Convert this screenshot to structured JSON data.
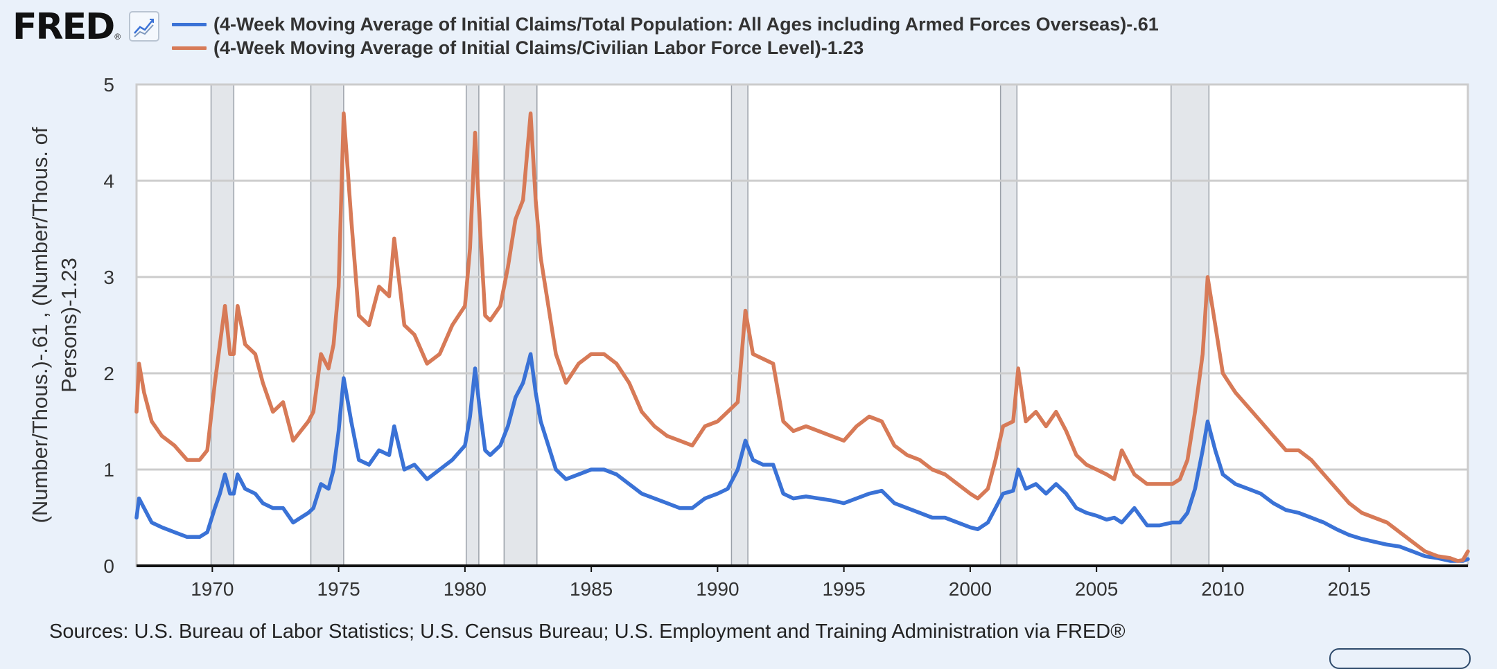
{
  "logo": {
    "text": "FRED",
    "reg": "®"
  },
  "icons": {
    "graph": "line-graph-icon"
  },
  "legend": {
    "series0": "(4-Week Moving Average of Initial Claims/Total Population: All Ages including Armed Forces Overseas)-.61",
    "series1": "(4-Week Moving Average of Initial Claims/Civilian Labor Force Level)-1.23"
  },
  "source": "Sources: U.S. Bureau of Labor Statistics; U.S. Census Bureau; U.S. Employment and Training Administration via FRED®",
  "colors": {
    "series0": "#3a72d6",
    "series1": "#d77a57",
    "recession": "#e3e6ea",
    "grid": "#cccccc",
    "axis": "#111111"
  },
  "chart_data": {
    "type": "line",
    "ylabel": "(Number/Thous.)-.61 , (Number/Thous. of Persons)-1.23",
    "xlim": [
      1967.0,
      2019.7
    ],
    "ylim": [
      0,
      5
    ],
    "x_ticks": [
      1970,
      1975,
      1980,
      1985,
      1990,
      1995,
      2000,
      2005,
      2010,
      2015
    ],
    "y_ticks": [
      0,
      1,
      2,
      3,
      4,
      5
    ],
    "grid": true,
    "legend_position": "top",
    "recessions": [
      [
        1969.95,
        1970.85
      ],
      [
        1973.9,
        1975.2
      ],
      [
        1980.05,
        1980.55
      ],
      [
        1981.55,
        1982.85
      ],
      [
        1990.55,
        1991.2
      ],
      [
        2001.2,
        2001.85
      ],
      [
        2007.95,
        2009.45
      ]
    ],
    "series": [
      {
        "name": "(4-Week Moving Average of Initial Claims/Total Population: All Ages including Armed Forces Overseas)-.61",
        "x": [
          1967.0,
          1967.1,
          1967.3,
          1967.6,
          1968.0,
          1968.5,
          1969.0,
          1969.5,
          1969.8,
          1970.1,
          1970.3,
          1970.5,
          1970.7,
          1970.85,
          1971.0,
          1971.3,
          1971.7,
          1972.0,
          1972.4,
          1972.8,
          1973.2,
          1973.5,
          1973.8,
          1974.0,
          1974.3,
          1974.6,
          1974.8,
          1975.0,
          1975.2,
          1975.5,
          1975.8,
          1976.2,
          1976.6,
          1977.0,
          1977.2,
          1977.6,
          1978.0,
          1978.5,
          1979.0,
          1979.5,
          1980.0,
          1980.2,
          1980.4,
          1980.6,
          1980.8,
          1981.0,
          1981.4,
          1981.7,
          1982.0,
          1982.3,
          1982.6,
          1982.8,
          1983.0,
          1983.3,
          1983.6,
          1984.0,
          1984.5,
          1985.0,
          1985.5,
          1986.0,
          1986.5,
          1987.0,
          1987.5,
          1988.0,
          1988.5,
          1989.0,
          1989.5,
          1990.0,
          1990.4,
          1990.8,
          1991.1,
          1991.4,
          1991.8,
          1992.2,
          1992.6,
          1993.0,
          1993.5,
          1994.0,
          1994.5,
          1995.0,
          1995.5,
          1996.0,
          1996.5,
          1997.0,
          1997.5,
          1998.0,
          1998.5,
          1999.0,
          1999.5,
          2000.0,
          2000.3,
          2000.7,
          2001.0,
          2001.3,
          2001.7,
          2001.9,
          2002.2,
          2002.6,
          2003.0,
          2003.4,
          2003.8,
          2004.2,
          2004.6,
          2005.0,
          2005.4,
          2005.7,
          2006.0,
          2006.5,
          2007.0,
          2007.5,
          2008.0,
          2008.3,
          2008.6,
          2008.9,
          2009.2,
          2009.4,
          2009.7,
          2010.0,
          2010.5,
          2011.0,
          2011.5,
          2012.0,
          2012.5,
          2013.0,
          2013.5,
          2014.0,
          2014.5,
          2015.0,
          2015.5,
          2016.0,
          2016.5,
          2017.0,
          2017.5,
          2018.0,
          2018.5,
          2019.0,
          2019.3,
          2019.5,
          2019.7
        ],
        "y": [
          0.5,
          0.7,
          0.6,
          0.45,
          0.4,
          0.35,
          0.3,
          0.3,
          0.35,
          0.6,
          0.75,
          0.95,
          0.75,
          0.75,
          0.95,
          0.8,
          0.75,
          0.65,
          0.6,
          0.6,
          0.45,
          0.5,
          0.55,
          0.6,
          0.85,
          0.8,
          1.0,
          1.4,
          1.95,
          1.5,
          1.1,
          1.05,
          1.2,
          1.15,
          1.45,
          1.0,
          1.05,
          0.9,
          1.0,
          1.1,
          1.25,
          1.55,
          2.05,
          1.6,
          1.2,
          1.15,
          1.25,
          1.45,
          1.75,
          1.9,
          2.2,
          1.8,
          1.5,
          1.25,
          1.0,
          0.9,
          0.95,
          1.0,
          1.0,
          0.95,
          0.85,
          0.75,
          0.7,
          0.65,
          0.6,
          0.6,
          0.7,
          0.75,
          0.8,
          1.0,
          1.3,
          1.1,
          1.05,
          1.05,
          0.75,
          0.7,
          0.72,
          0.7,
          0.68,
          0.65,
          0.7,
          0.75,
          0.78,
          0.65,
          0.6,
          0.55,
          0.5,
          0.5,
          0.45,
          0.4,
          0.38,
          0.45,
          0.6,
          0.75,
          0.78,
          1.0,
          0.8,
          0.85,
          0.75,
          0.85,
          0.75,
          0.6,
          0.55,
          0.52,
          0.48,
          0.5,
          0.45,
          0.6,
          0.42,
          0.42,
          0.45,
          0.45,
          0.55,
          0.8,
          1.2,
          1.5,
          1.2,
          0.95,
          0.85,
          0.8,
          0.75,
          0.65,
          0.58,
          0.55,
          0.5,
          0.45,
          0.38,
          0.32,
          0.28,
          0.25,
          0.22,
          0.2,
          0.15,
          0.1,
          0.08,
          0.05,
          0.05,
          0.05,
          0.07
        ]
      },
      {
        "name": "(4-Week Moving Average of Initial Claims/Civilian Labor Force Level)-1.23",
        "x": [
          1967.0,
          1967.1,
          1967.3,
          1967.6,
          1968.0,
          1968.5,
          1969.0,
          1969.5,
          1969.8,
          1970.1,
          1970.3,
          1970.5,
          1970.7,
          1970.85,
          1971.0,
          1971.3,
          1971.7,
          1972.0,
          1972.4,
          1972.8,
          1973.2,
          1973.5,
          1973.8,
          1974.0,
          1974.3,
          1974.6,
          1974.8,
          1975.0,
          1975.2,
          1975.5,
          1975.8,
          1976.2,
          1976.6,
          1977.0,
          1977.2,
          1977.6,
          1978.0,
          1978.5,
          1979.0,
          1979.5,
          1980.0,
          1980.2,
          1980.4,
          1980.6,
          1980.8,
          1981.0,
          1981.4,
          1981.7,
          1982.0,
          1982.3,
          1982.6,
          1982.8,
          1983.0,
          1983.3,
          1983.6,
          1984.0,
          1984.5,
          1985.0,
          1985.5,
          1986.0,
          1986.5,
          1987.0,
          1987.5,
          1988.0,
          1988.5,
          1989.0,
          1989.5,
          1990.0,
          1990.4,
          1990.8,
          1991.1,
          1991.4,
          1991.8,
          1992.2,
          1992.6,
          1993.0,
          1993.5,
          1994.0,
          1994.5,
          1995.0,
          1995.5,
          1996.0,
          1996.5,
          1997.0,
          1997.5,
          1998.0,
          1998.5,
          1999.0,
          1999.5,
          2000.0,
          2000.3,
          2000.7,
          2001.0,
          2001.3,
          2001.7,
          2001.9,
          2002.2,
          2002.6,
          2003.0,
          2003.4,
          2003.8,
          2004.2,
          2004.6,
          2005.0,
          2005.4,
          2005.7,
          2006.0,
          2006.5,
          2007.0,
          2007.5,
          2008.0,
          2008.3,
          2008.6,
          2008.9,
          2009.2,
          2009.4,
          2009.7,
          2010.0,
          2010.5,
          2011.0,
          2011.5,
          2012.0,
          2012.5,
          2013.0,
          2013.5,
          2014.0,
          2014.5,
          2015.0,
          2015.5,
          2016.0,
          2016.5,
          2017.0,
          2017.5,
          2018.0,
          2018.5,
          2019.0,
          2019.3,
          2019.5,
          2019.7
        ],
        "y": [
          1.6,
          2.1,
          1.8,
          1.5,
          1.35,
          1.25,
          1.1,
          1.1,
          1.2,
          1.9,
          2.3,
          2.7,
          2.2,
          2.2,
          2.7,
          2.3,
          2.2,
          1.9,
          1.6,
          1.7,
          1.3,
          1.4,
          1.5,
          1.6,
          2.2,
          2.05,
          2.3,
          2.9,
          4.7,
          3.6,
          2.6,
          2.5,
          2.9,
          2.8,
          3.4,
          2.5,
          2.4,
          2.1,
          2.2,
          2.5,
          2.7,
          3.3,
          4.5,
          3.5,
          2.6,
          2.55,
          2.7,
          3.1,
          3.6,
          3.8,
          4.7,
          3.8,
          3.2,
          2.7,
          2.2,
          1.9,
          2.1,
          2.2,
          2.2,
          2.1,
          1.9,
          1.6,
          1.45,
          1.35,
          1.3,
          1.25,
          1.45,
          1.5,
          1.6,
          1.7,
          2.65,
          2.2,
          2.15,
          2.1,
          1.5,
          1.4,
          1.45,
          1.4,
          1.35,
          1.3,
          1.45,
          1.55,
          1.5,
          1.25,
          1.15,
          1.1,
          1.0,
          0.95,
          0.85,
          0.75,
          0.7,
          0.8,
          1.1,
          1.45,
          1.5,
          2.05,
          1.5,
          1.6,
          1.45,
          1.6,
          1.4,
          1.15,
          1.05,
          1.0,
          0.95,
          0.9,
          1.2,
          0.95,
          0.85,
          0.85,
          0.85,
          0.9,
          1.1,
          1.6,
          2.2,
          3.0,
          2.5,
          2.0,
          1.8,
          1.65,
          1.5,
          1.35,
          1.2,
          1.2,
          1.1,
          0.95,
          0.8,
          0.65,
          0.55,
          0.5,
          0.45,
          0.35,
          0.25,
          0.15,
          0.1,
          0.08,
          0.05,
          0.06,
          0.15
        ]
      }
    ]
  }
}
